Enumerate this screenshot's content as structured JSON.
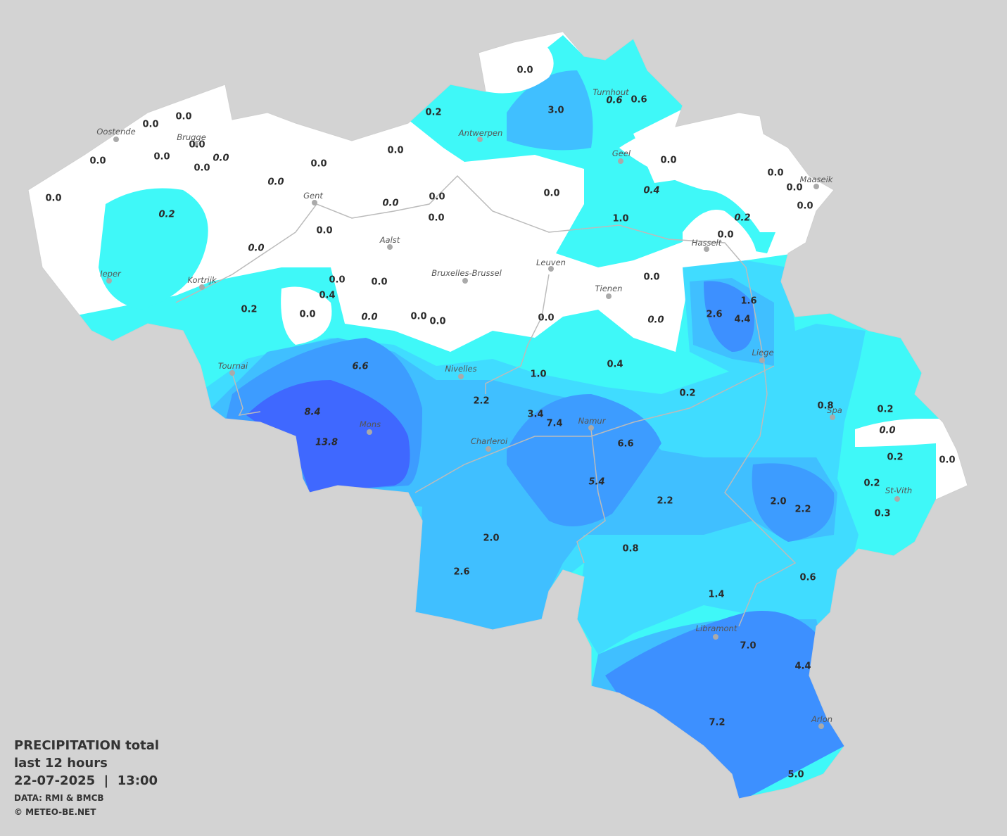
{
  "map": {
    "cities": [
      {
        "name": "Oostende"
      },
      {
        "name": "Brugge"
      },
      {
        "name": "Gent"
      },
      {
        "name": "Antwerpen"
      },
      {
        "name": "Turnhout"
      },
      {
        "name": "Geel"
      },
      {
        "name": "Maaseik"
      },
      {
        "name": "Hasselt"
      },
      {
        "name": "Aalst"
      },
      {
        "name": "Ieper"
      },
      {
        "name": "Kortrijk"
      },
      {
        "name": "Bruxelles-Brussel"
      },
      {
        "name": "Leuven"
      },
      {
        "name": "Tienen"
      },
      {
        "name": "Liege"
      },
      {
        "name": "Tournai"
      },
      {
        "name": "Nivelles"
      },
      {
        "name": "Mons"
      },
      {
        "name": "Namur"
      },
      {
        "name": "Charleroi"
      },
      {
        "name": "Spa"
      },
      {
        "name": "St-Vith"
      },
      {
        "name": "Libramont"
      },
      {
        "name": "Arlon"
      }
    ],
    "values": [
      {
        "text": "0.0"
      },
      {
        "text": "0.2"
      },
      {
        "text": "3.0"
      },
      {
        "text": "0.6",
        "italic": true
      },
      {
        "text": "0.6"
      },
      {
        "text": "0.0"
      },
      {
        "text": "0.0"
      },
      {
        "text": "0.0"
      },
      {
        "text": "0.0"
      },
      {
        "text": "0.0",
        "italic": true
      },
      {
        "text": "0.0"
      },
      {
        "text": "0.0"
      },
      {
        "text": "0.0"
      },
      {
        "text": "0.0"
      },
      {
        "text": "0.0"
      },
      {
        "text": "0.0"
      },
      {
        "text": "0.0"
      },
      {
        "text": "0.0"
      },
      {
        "text": "0.0",
        "italic": true
      },
      {
        "text": "0.0"
      },
      {
        "text": "0.2",
        "italic": true
      },
      {
        "text": "0.0"
      },
      {
        "text": "0.0",
        "italic": true
      },
      {
        "text": "0.0"
      },
      {
        "text": "0.0"
      },
      {
        "text": "0.4",
        "italic": true
      },
      {
        "text": "1.0"
      },
      {
        "text": "0.2",
        "italic": true
      },
      {
        "text": "0.0"
      },
      {
        "text": "0.0"
      },
      {
        "text": "0.0",
        "italic": true
      },
      {
        "text": "0.0"
      },
      {
        "text": "0.0"
      },
      {
        "text": "0.4"
      },
      {
        "text": "0.0"
      },
      {
        "text": "1.6"
      },
      {
        "text": "0.2"
      },
      {
        "text": "0.0"
      },
      {
        "text": "0.0",
        "italic": true
      },
      {
        "text": "0.0"
      },
      {
        "text": "0.0"
      },
      {
        "text": "0.0"
      },
      {
        "text": "0.0",
        "italic": true
      },
      {
        "text": "2.6"
      },
      {
        "text": "4.4"
      },
      {
        "text": "6.6",
        "italic": true
      },
      {
        "text": "1.0"
      },
      {
        "text": "0.4"
      },
      {
        "text": "0.2"
      },
      {
        "text": "2.2"
      },
      {
        "text": "3.4"
      },
      {
        "text": "7.4"
      },
      {
        "text": "0.8"
      },
      {
        "text": "0.2"
      },
      {
        "text": "0.0",
        "italic": true
      },
      {
        "text": "8.4",
        "italic": true
      },
      {
        "text": "13.8",
        "italic": true
      },
      {
        "text": "6.6"
      },
      {
        "text": "0.2"
      },
      {
        "text": "0.0"
      },
      {
        "text": "5.4",
        "italic": true
      },
      {
        "text": "2.2"
      },
      {
        "text": "2.0"
      },
      {
        "text": "2.2"
      },
      {
        "text": "0.2"
      },
      {
        "text": "0.3"
      },
      {
        "text": "2.0"
      },
      {
        "text": "0.8"
      },
      {
        "text": "0.6"
      },
      {
        "text": "2.6"
      },
      {
        "text": "1.4"
      },
      {
        "text": "7.0"
      },
      {
        "text": "4.4"
      },
      {
        "text": "7.2"
      },
      {
        "text": "5.0"
      }
    ],
    "legend": {
      "title": "PRECIPITATION total",
      "period": "last 12 hours",
      "datetime": "22-07-2025  |  13:00",
      "source": "DATA: RMI & BMCB",
      "credit": "© METEO-BE.NET"
    }
  }
}
